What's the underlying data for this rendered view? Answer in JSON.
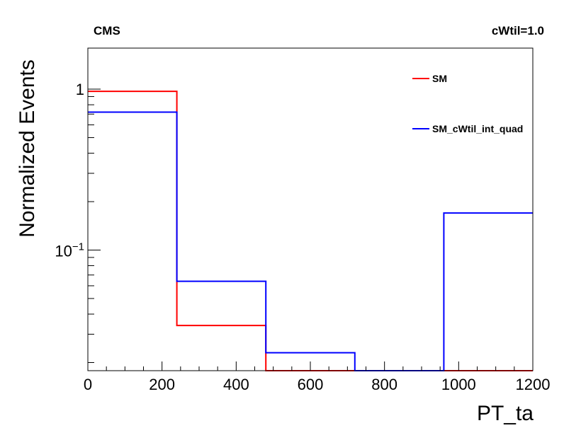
{
  "chart_data": {
    "type": "histogram",
    "title_left": "CMS",
    "title_right": "cWtil=1.0",
    "xlabel": "PT_ta",
    "ylabel": "Normalized Events",
    "xlim": [
      0,
      1200
    ],
    "ylim": [
      0.0178,
      1.8
    ],
    "yscale": "log",
    "x_ticks": [
      "0",
      "200",
      "400",
      "600",
      "800",
      "1000",
      "1200"
    ],
    "y_ticks": [
      {
        "base": "1",
        "exp": ""
      },
      {
        "base": "10",
        "exp": "−1"
      }
    ],
    "bin_edges": [
      0,
      240,
      480,
      720,
      960,
      1200
    ],
    "legend_position": "top-right",
    "grid": false,
    "series": [
      {
        "name": "SM",
        "color": "#ff0000",
        "values": [
          0.97,
          0.034,
          0.0,
          0.0,
          0.0
        ]
      },
      {
        "name": "SM_cWtil_int_quad",
        "color": "#0000ff",
        "values": [
          0.72,
          0.064,
          0.023,
          0.0,
          0.17
        ]
      }
    ]
  }
}
